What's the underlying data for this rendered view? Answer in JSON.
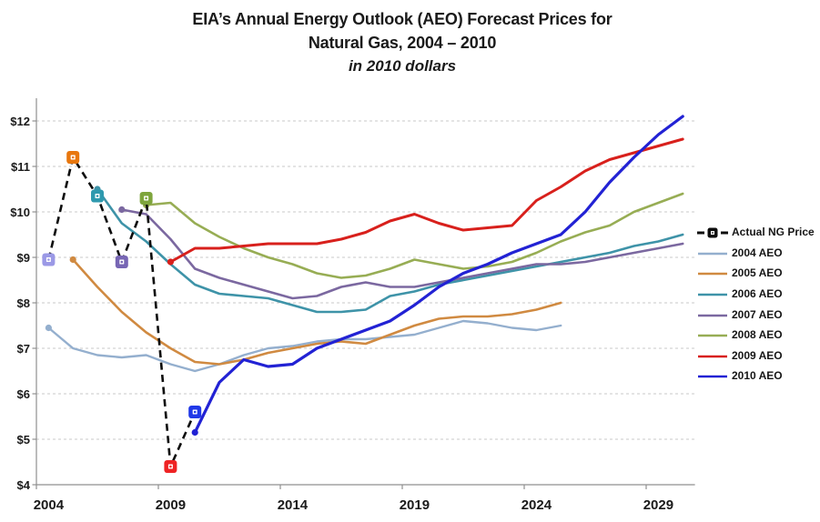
{
  "title": {
    "line1": "EIA’s Annual Energy Outlook (AEO) Forecast Prices for",
    "line2": "Natural Gas, 2004 – 2010",
    "line3": "in 2010 dollars"
  },
  "axes": {
    "y_tick_labels": [
      "$12",
      "$11",
      "$10",
      "$9",
      "$8",
      "$7",
      "$6",
      "$5",
      "$4"
    ],
    "x_tick_labels": [
      "2004",
      "2009",
      "2014",
      "2019",
      "2024",
      "2029"
    ]
  },
  "legend": {
    "position": "right",
    "items": [
      {
        "label": "Actual NG Price"
      },
      {
        "label": "2004 AEO"
      },
      {
        "label": "2005 AEO"
      },
      {
        "label": "2006 AEO"
      },
      {
        "label": "2007 AEO"
      },
      {
        "label": "2008 AEO"
      },
      {
        "label": "2009 AEO"
      },
      {
        "label": "2010 AEO"
      }
    ]
  },
  "chart_data": {
    "type": "line",
    "title": "EIA’s Annual Energy Outlook (AEO) Forecast Prices for Natural Gas, 2004 – 2010",
    "subtitle": "in 2010 dollars",
    "ylim": [
      4,
      12
    ],
    "xlim": [
      2003.5,
      2030.5
    ],
    "y_ticks": [
      4,
      5,
      6,
      7,
      8,
      9,
      10,
      11,
      12
    ],
    "x_ticks": [
      2004,
      2009,
      2014,
      2019,
      2024,
      2029
    ],
    "grid": "horizontal-dashed",
    "legend_position": "right",
    "colors": {
      "gridline": "#c9c9c9",
      "axis": "#8f8f8f",
      "text": "#1a1a1a"
    },
    "series": [
      {
        "name": "Actual NG Price",
        "style": "dashed",
        "color": "#0d0d0d",
        "start_year": 2004,
        "values": [
          8.95,
          11.2,
          10.35,
          8.9,
          10.3,
          4.4,
          5.6
        ],
        "marker": "square-white-center",
        "marker_colors": [
          "#9b99e6",
          "#e8770e",
          "#2e99ae",
          "#7766b4",
          "#7ea53c",
          "#ee2324",
          "#2038e8"
        ]
      },
      {
        "name": "2004 AEO",
        "color": "#94afce",
        "start_year": 2004,
        "values": [
          7.45,
          7.0,
          6.85,
          6.8,
          6.85,
          6.65,
          6.5,
          6.65,
          6.85,
          7.0,
          7.05,
          7.15,
          7.2,
          7.2,
          7.25,
          7.3,
          7.45,
          7.6,
          7.55,
          7.45,
          7.4,
          7.5
        ]
      },
      {
        "name": "2005 AEO",
        "color": "#d08a41",
        "start_year": 2005,
        "values": [
          8.95,
          8.35,
          7.8,
          7.35,
          7.0,
          6.7,
          6.65,
          6.75,
          6.9,
          7.0,
          7.1,
          7.15,
          7.1,
          7.3,
          7.5,
          7.65,
          7.7,
          7.7,
          7.75,
          7.85,
          8.0
        ]
      },
      {
        "name": "2006 AEO",
        "color": "#3e93a8",
        "start_year": 2006,
        "values": [
          10.5,
          9.75,
          9.35,
          8.85,
          8.4,
          8.2,
          8.15,
          8.1,
          7.95,
          7.8,
          7.8,
          7.85,
          8.15,
          8.25,
          8.4,
          8.5,
          8.6,
          8.7,
          8.8,
          8.9,
          9.0,
          9.1,
          9.25,
          9.35,
          9.5
        ]
      },
      {
        "name": "2007 AEO",
        "color": "#7b68a0",
        "start_year": 2007,
        "values": [
          10.05,
          9.95,
          9.4,
          8.75,
          8.55,
          8.4,
          8.25,
          8.1,
          8.15,
          8.35,
          8.45,
          8.35,
          8.35,
          8.45,
          8.55,
          8.65,
          8.75,
          8.85,
          8.85,
          8.9,
          9.0,
          9.1,
          9.2,
          9.3
        ]
      },
      {
        "name": "2008 AEO",
        "color": "#97ad54",
        "start_year": 2008,
        "values": [
          10.15,
          10.2,
          9.75,
          9.45,
          9.2,
          9.0,
          8.85,
          8.65,
          8.55,
          8.6,
          8.75,
          8.95,
          8.85,
          8.75,
          8.8,
          8.9,
          9.1,
          9.35,
          9.55,
          9.7,
          10.0,
          10.2,
          10.4
        ]
      },
      {
        "name": "2009 AEO",
        "color": "#d8201c",
        "start_year": 2009,
        "values": [
          8.9,
          9.2,
          9.2,
          9.25,
          9.3,
          9.3,
          9.3,
          9.4,
          9.55,
          9.8,
          9.95,
          9.75,
          9.6,
          9.65,
          9.7,
          10.25,
          10.55,
          10.9,
          11.15,
          11.3,
          11.45,
          11.6
        ]
      },
      {
        "name": "2010 AEO",
        "color": "#2222d4",
        "start_year": 2010,
        "values": [
          5.15,
          6.25,
          6.75,
          6.6,
          6.65,
          7.0,
          7.2,
          7.4,
          7.6,
          7.95,
          8.35,
          8.65,
          8.85,
          9.1,
          9.3,
          9.5,
          10.0,
          10.65,
          11.2,
          11.7,
          12.1
        ]
      }
    ]
  }
}
